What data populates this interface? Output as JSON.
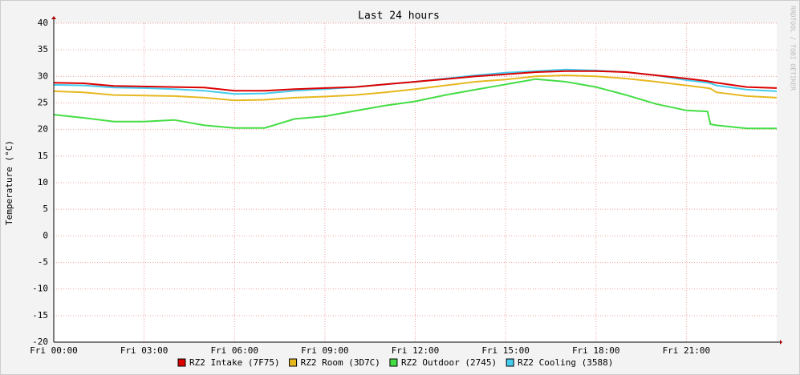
{
  "chart_data": {
    "type": "line",
    "title": "Last 24 hours",
    "y_label": "Temperature (°C)",
    "watermark": "RRDTOOL / TOBI OETIKER",
    "x": [
      0,
      1,
      2,
      3,
      4,
      5,
      6,
      7,
      8,
      9,
      10,
      11,
      12,
      13,
      14,
      15,
      16,
      17,
      18,
      19,
      20,
      21,
      21.7,
      21.8,
      22,
      23,
      24
    ],
    "xlim": [
      0,
      24
    ],
    "xticks": [
      {
        "value": 0,
        "label": "Fri 00:00"
      },
      {
        "value": 3,
        "label": "Fri 03:00"
      },
      {
        "value": 6,
        "label": "Fri 06:00"
      },
      {
        "value": 9,
        "label": "Fri 09:00"
      },
      {
        "value": 12,
        "label": "Fri 12:00"
      },
      {
        "value": 15,
        "label": "Fri 15:00"
      },
      {
        "value": 18,
        "label": "Fri 18:00"
      },
      {
        "value": 21,
        "label": "Fri 21:00"
      }
    ],
    "ylim": [
      -20,
      40
    ],
    "yticks": [
      -20,
      -15,
      -10,
      -5,
      0,
      5,
      10,
      15,
      20,
      25,
      30,
      35,
      40
    ],
    "grid": true,
    "series": [
      {
        "name": "RZ2 Outdoor (2745)",
        "color": "#44dd44",
        "values": [
          22.8,
          22.2,
          21.5,
          21.5,
          21.8,
          20.8,
          20.3,
          20.3,
          22.0,
          22.5,
          23.5,
          24.5,
          25.3,
          26.5,
          27.5,
          28.5,
          29.5,
          29.0,
          28.0,
          26.5,
          24.8,
          23.6,
          23.4,
          21.0,
          20.8,
          20.2,
          20.2
        ]
      },
      {
        "name": "RZ2 Room (3D7C)",
        "color": "#e6b820",
        "values": [
          27.2,
          27.0,
          26.5,
          26.4,
          26.3,
          26.0,
          25.5,
          25.6,
          26.0,
          26.2,
          26.5,
          27.0,
          27.6,
          28.3,
          29.0,
          29.4,
          30.0,
          30.2,
          30.0,
          29.6,
          29.0,
          28.3,
          27.8,
          27.7,
          27.0,
          26.3,
          26.0
        ]
      },
      {
        "name": "RZ2 Cooling (3588)",
        "color": "#44ccee",
        "values": [
          28.4,
          28.3,
          27.9,
          27.8,
          27.6,
          27.3,
          26.7,
          26.8,
          27.3,
          27.6,
          28.0,
          28.5,
          29.0,
          29.6,
          30.2,
          30.7,
          31.0,
          31.3,
          31.1,
          30.8,
          30.2,
          29.3,
          28.8,
          28.7,
          28.3,
          27.5,
          27.2
        ]
      },
      {
        "name": "RZ2 Intake (7F75)",
        "color": "#dd0000",
        "values": [
          28.8,
          28.7,
          28.2,
          28.1,
          28.0,
          27.9,
          27.3,
          27.3,
          27.6,
          27.8,
          28.0,
          28.5,
          29.0,
          29.5,
          30.0,
          30.4,
          30.8,
          31.0,
          31.0,
          30.8,
          30.2,
          29.6,
          29.1,
          29.0,
          28.8,
          28.0,
          27.8
        ]
      }
    ],
    "legend_order": [
      3,
      1,
      0,
      2
    ]
  }
}
